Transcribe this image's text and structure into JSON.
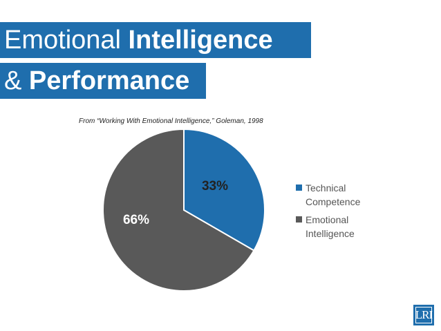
{
  "title": {
    "line1_light": "Emotional",
    "line1_bold": "Intelligence",
    "line2_prefix": "&",
    "line2_bold": "Performance"
  },
  "source": "From “Working With Emotional Intelligence,” Goleman, 1998",
  "logo_text": "LRI",
  "chart_data": {
    "type": "pie",
    "categories": [
      "Technical Competence",
      "Emotional Intelligence"
    ],
    "values": [
      33,
      66
    ],
    "labels": [
      "33%",
      "66%"
    ],
    "colors": [
      "#1f6ead",
      "#595959"
    ],
    "legend_position": "right"
  }
}
